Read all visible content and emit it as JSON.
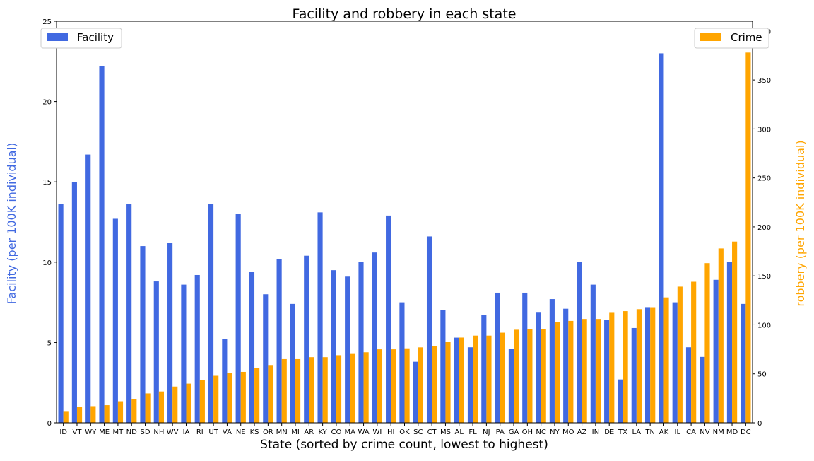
{
  "chart_data": {
    "type": "bar",
    "title": "Facility and robbery in each state",
    "xlabel": "State (sorted by crime count, lowest to highest)",
    "ylabel_left": "Facility (per 100K individual)",
    "ylabel_right": "robbery (per 100K individual)",
    "ylim_left": [
      0,
      25
    ],
    "ylim_right": [
      0,
      410
    ],
    "yticks_left": [
      0,
      5,
      10,
      15,
      20,
      25
    ],
    "yticks_right": [
      0,
      50,
      100,
      150,
      200,
      250,
      300,
      350,
      400
    ],
    "grid": false,
    "categories": [
      "ID",
      "VT",
      "WY",
      "ME",
      "MT",
      "ND",
      "SD",
      "NH",
      "WV",
      "IA",
      "RI",
      "UT",
      "VA",
      "NE",
      "KS",
      "OR",
      "MN",
      "MI",
      "AR",
      "KY",
      "CO",
      "MA",
      "WA",
      "WI",
      "HI",
      "OK",
      "SC",
      "CT",
      "MS",
      "AL",
      "FL",
      "NJ",
      "PA",
      "GA",
      "OH",
      "NC",
      "NY",
      "MO",
      "AZ",
      "IN",
      "DE",
      "TX",
      "LA",
      "TN",
      "AK",
      "IL",
      "CA",
      "NV",
      "NM",
      "MD",
      "DC"
    ],
    "series": [
      {
        "name": "Facility",
        "axis": "left",
        "color": "#4169E1",
        "legend_position": "upper left",
        "values": [
          13.6,
          15.0,
          16.7,
          22.2,
          12.7,
          13.6,
          11.0,
          8.8,
          11.2,
          8.6,
          9.2,
          13.6,
          5.2,
          13.0,
          9.4,
          8.0,
          10.2,
          7.4,
          10.4,
          13.1,
          9.5,
          9.1,
          10.0,
          10.6,
          12.9,
          7.5,
          3.8,
          11.6,
          7.0,
          5.3,
          4.7,
          6.7,
          8.1,
          4.6,
          8.1,
          6.9,
          7.7,
          7.1,
          10.0,
          8.6,
          6.4,
          2.7,
          5.9,
          7.2,
          23.0,
          7.5,
          4.7,
          4.1,
          8.9,
          10.0,
          7.4
        ]
      },
      {
        "name": "Crime",
        "axis": "right",
        "color": "#FFA500",
        "legend_position": "upper right",
        "values": [
          12,
          16,
          17,
          18,
          22,
          24,
          30,
          32,
          37,
          40,
          44,
          48,
          51,
          52,
          56,
          59,
          65,
          65,
          67,
          67,
          69,
          71,
          72,
          75,
          75,
          76,
          77,
          78,
          83,
          87,
          89,
          89,
          92,
          95,
          96,
          96,
          103,
          104,
          106,
          106,
          113,
          114,
          116,
          118,
          128,
          139,
          144,
          163,
          178,
          185,
          378
        ]
      }
    ]
  }
}
